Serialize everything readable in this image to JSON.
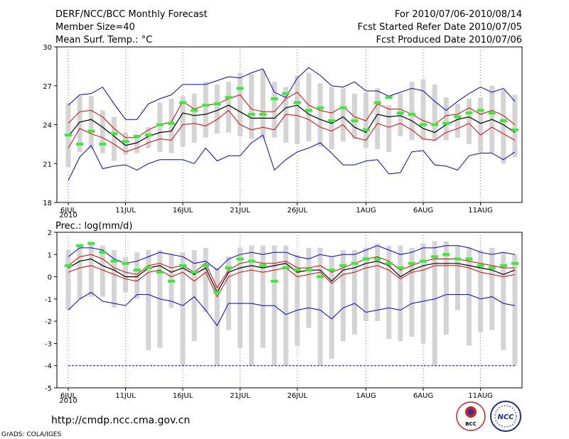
{
  "header": {
    "title": "DERF/NCC/BCC Monthly Forecast",
    "member_size": "Member Size=40",
    "variable": "Mean Surf. Temp.: °C",
    "forecast_range": "For 2010/07/06-2010/08/14",
    "started_date": "Fcst Started Refer Date 2010/07/05",
    "produced_date": "Fcst Produced Date 2010/07/06"
  },
  "footer": {
    "url": "http://cmdp.ncc.cma.gov.cn",
    "grads_credit": "GrADS: COLA/IGES",
    "logo_bcc_text": "BCC",
    "logo_ncc_text": "NCC"
  },
  "colors": {
    "max_line": "#0000dd",
    "min_line": "#0000dd",
    "upper_line": "#dd0000",
    "lower_line": "#dd0000",
    "mean_line": "#000000",
    "box": "#d4d4d4",
    "obs_marker": "#33ee33",
    "dotted_grid": "#888888",
    "dashed_ref": "#0000aa"
  },
  "chart_data": [
    {
      "type": "line",
      "title": "Mean Surf. Temp.: °C",
      "xlabel": "",
      "ylabel": "",
      "ylim": [
        18,
        30
      ],
      "yticks": [
        "18",
        "21",
        "24",
        "27",
        "30"
      ],
      "x_tick_labels": [
        "6JUL",
        "11JUL",
        "16JUL",
        "21JUL",
        "26JUL",
        "1AUG",
        "6AUG",
        "11AUG"
      ],
      "x_tick_days": [
        0,
        5,
        10,
        15,
        20,
        26,
        31,
        36
      ],
      "x_sub_label": "2010",
      "grid": true,
      "days": 40,
      "series": [
        {
          "name": "max",
          "role": "max",
          "values": [
            19.7,
            21.5,
            22.4,
            20.6,
            20.8,
            20.9,
            20.5,
            21.0,
            21.3,
            21.3,
            21.3,
            21.0,
            22.2,
            21.2,
            21.6,
            21.6,
            22.6,
            23.2,
            20.5,
            21.3,
            21.9,
            22.2,
            22.6,
            21.8,
            20.9,
            20.9,
            21.2,
            21.3,
            20.2,
            20.3,
            21.9,
            22.0,
            20.9,
            20.8,
            20.5,
            21.6,
            21.8,
            21.8,
            21.3,
            21.9
          ]
        },
        {
          "name": "box_top",
          "role": "box_top",
          "values": [
            25.7,
            26.2,
            26.2,
            25.1,
            24.6,
            23.4,
            23.2,
            23.8,
            25.7,
            26.0,
            26.2,
            26.4,
            27.3,
            27.1,
            27.3,
            28.0,
            27.9,
            28.2,
            27.3,
            26.9,
            27.8,
            28.0,
            27.2,
            26.9,
            26.8,
            26.4,
            26.5,
            26.8,
            25.5,
            26.4,
            27.3,
            27.5,
            27.1,
            26.1,
            25.6,
            26.0,
            26.1,
            27.0,
            26.7,
            26.3
          ]
        },
        {
          "name": "upper",
          "role": "upper",
          "values": [
            24.1,
            25.0,
            25.1,
            24.6,
            23.7,
            23.0,
            23.0,
            23.6,
            24.0,
            24.2,
            25.8,
            25.2,
            25.5,
            25.6,
            26.0,
            26.3,
            25.2,
            25.0,
            25.0,
            26.0,
            26.5,
            25.5,
            25.1,
            24.9,
            25.4,
            24.6,
            24.3,
            25.6,
            25.2,
            25.2,
            24.8,
            24.3,
            24.0,
            24.7,
            24.8,
            25.3,
            24.8,
            25.1,
            24.7,
            24.0
          ]
        },
        {
          "name": "ensemble_mean",
          "role": "mean",
          "values": [
            23.1,
            24.2,
            24.4,
            23.8,
            23.1,
            22.4,
            22.6,
            23.1,
            23.4,
            23.5,
            24.9,
            24.7,
            24.8,
            25.1,
            25.5,
            25.0,
            24.5,
            24.5,
            24.5,
            25.3,
            25.5,
            24.8,
            24.4,
            24.1,
            24.6,
            23.8,
            23.4,
            24.8,
            24.6,
            24.7,
            24.3,
            23.7,
            23.4,
            24.0,
            24.4,
            24.6,
            24.1,
            24.4,
            24.0,
            23.4
          ]
        },
        {
          "name": "lower",
          "role": "lower",
          "values": [
            22.2,
            23.7,
            23.3,
            23.0,
            22.5,
            21.9,
            22.2,
            22.6,
            22.9,
            22.8,
            24.0,
            24.1,
            23.9,
            24.4,
            25.1,
            24.0,
            23.6,
            23.8,
            23.6,
            24.8,
            24.7,
            24.4,
            23.8,
            23.5,
            24.0,
            23.0,
            22.8,
            24.1,
            23.8,
            24.1,
            23.6,
            22.9,
            22.8,
            23.4,
            23.7,
            24.1,
            23.2,
            23.8,
            23.3,
            22.8
          ]
        },
        {
          "name": "box_bottom",
          "role": "box_bottom",
          "values": [
            20.7,
            21.9,
            22.1,
            21.8,
            21.2,
            21.7,
            21.8,
            22.2,
            21.9,
            21.8,
            22.3,
            22.6,
            23.0,
            23.3,
            23.4,
            23.1,
            22.9,
            22.9,
            23.0,
            22.6,
            22.5,
            22.7,
            22.3,
            22.1,
            22.7,
            22.9,
            22.2,
            22.1,
            21.9,
            23.1,
            22.8,
            22.8,
            22.7,
            22.8,
            23.0,
            22.5,
            21.9,
            21.8,
            21.0,
            21.5
          ]
        },
        {
          "name": "min",
          "role": "min",
          "values": [
            25.5,
            26.3,
            26.4,
            26.9,
            25.6,
            24.4,
            24.4,
            25.6,
            26.0,
            26.3,
            27.1,
            27.1,
            27.1,
            27.4,
            27.7,
            27.6,
            28.0,
            28.3,
            26.5,
            26.1,
            27.6,
            28.4,
            27.8,
            27.0,
            26.9,
            27.3,
            26.6,
            26.6,
            26.2,
            26.5,
            26.8,
            26.6,
            25.8,
            25.1,
            25.8,
            26.4,
            26.9,
            26.5,
            26.8,
            25.8
          ]
        },
        {
          "name": "observed",
          "role": "obs",
          "values": [
            23.2,
            22.5,
            23.5,
            22.5,
            23.3,
            22.7,
            23.1,
            23.2,
            24.0,
            24.1,
            25.7,
            25.1,
            25.5,
            25.6,
            26.1,
            26.8,
            24.8,
            24.8,
            26.0,
            26.4,
            25.7,
            25.1,
            25.3,
            24.3,
            25.3,
            24.3,
            23.6,
            25.7,
            26.1,
            24.9,
            24.8,
            24.0,
            24.0,
            24.1,
            24.6,
            24.9,
            25.1,
            24.9,
            24.3,
            23.6
          ]
        }
      ]
    },
    {
      "type": "line",
      "title": "Prec.: log(mm/d)",
      "xlabel": "",
      "ylabel": "",
      "ylim": [
        -5,
        2
      ],
      "yticks": [
        "-5",
        "-4",
        "-3",
        "-2",
        "-1",
        "0",
        "1",
        "2"
      ],
      "x_tick_labels": [
        "6JUL",
        "11JUL",
        "16JUL",
        "21JUL",
        "26JUL",
        "1AUG",
        "6AUG",
        "11AUG"
      ],
      "x_tick_days": [
        0,
        5,
        10,
        15,
        20,
        26,
        31,
        36
      ],
      "x_sub_label": "2010",
      "grid": true,
      "days": 40,
      "reference_line": -4,
      "series": [
        {
          "name": "max",
          "role": "max",
          "values": [
            0.9,
            1.3,
            1.3,
            1.2,
            0.8,
            0.6,
            0.7,
            0.9,
            1.1,
            1.0,
            0.9,
            0.6,
            0.7,
            0.3,
            0.8,
            1.0,
            1.1,
            1.0,
            1.1,
            1.1,
            0.9,
            0.8,
            1.0,
            0.9,
            1.0,
            1.0,
            1.2,
            1.4,
            1.2,
            1.0,
            1.1,
            1.3,
            1.3,
            1.4,
            1.4,
            1.3,
            1.1,
            1.0,
            1.1,
            1.0
          ]
        },
        {
          "name": "box_top",
          "role": "box_top",
          "values": [
            1.2,
            1.4,
            1.5,
            1.4,
            1.2,
            0.9,
            1.1,
            1.2,
            1.2,
            1.0,
            1.1,
            1.2,
            1.3,
            0.4,
            0.9,
            1.3,
            1.4,
            1.4,
            1.4,
            1.4,
            1.0,
            1.3,
            1.3,
            0.9,
            1.2,
            1.2,
            1.3,
            1.5,
            1.4,
            1.4,
            1.3,
            1.5,
            1.6,
            1.6,
            1.4,
            1.3,
            1.2,
            1.3,
            1.1,
            1.0
          ]
        },
        {
          "name": "upper",
          "role": "upper",
          "values": [
            0.5,
            0.9,
            1.0,
            0.8,
            0.4,
            0.2,
            0.1,
            0.5,
            0.6,
            0.4,
            0.5,
            0.2,
            0.6,
            -0.5,
            0.3,
            0.6,
            0.7,
            0.6,
            0.6,
            0.7,
            0.4,
            0.4,
            0.5,
            0.2,
            0.4,
            0.6,
            0.8,
            0.9,
            0.7,
            0.3,
            0.5,
            0.7,
            0.8,
            0.8,
            0.8,
            0.7,
            0.6,
            0.5,
            0.4,
            0.4
          ]
        },
        {
          "name": "ensemble_mean",
          "role": "mean",
          "values": [
            0.4,
            0.7,
            0.8,
            0.5,
            0.3,
            0.0,
            0.0,
            0.4,
            0.5,
            0.2,
            0.4,
            0.1,
            0.4,
            -0.7,
            0.2,
            0.4,
            0.5,
            0.4,
            0.5,
            0.6,
            0.2,
            0.3,
            0.3,
            -0.2,
            0.3,
            0.4,
            0.6,
            0.7,
            0.5,
            0.0,
            0.3,
            0.5,
            0.6,
            0.6,
            0.6,
            0.5,
            0.4,
            0.3,
            0.1,
            0.3
          ]
        },
        {
          "name": "lower",
          "role": "lower",
          "values": [
            0.2,
            0.4,
            0.5,
            0.3,
            0.1,
            -0.1,
            -0.2,
            0.2,
            0.3,
            0.0,
            0.2,
            -0.2,
            0.2,
            -0.9,
            0.0,
            0.2,
            0.3,
            0.2,
            0.3,
            0.4,
            0.0,
            0.1,
            0.2,
            -0.3,
            0.1,
            0.2,
            0.4,
            0.5,
            0.3,
            -0.1,
            0.2,
            0.3,
            0.5,
            0.5,
            0.5,
            0.4,
            0.2,
            0.1,
            0.0,
            0.1
          ]
        },
        {
          "name": "box_bottom",
          "role": "box_bottom",
          "values": [
            -1.5,
            -1.0,
            -0.9,
            -0.9,
            -1.4,
            -0.7,
            -1.0,
            -3.3,
            -3.2,
            -1.4,
            -4.0,
            -2.9,
            -1.6,
            -4.0,
            -2.4,
            -3.2,
            -4.0,
            -3.2,
            -4.0,
            -4.0,
            -3.1,
            -2.3,
            -4.0,
            -3.7,
            -2.9,
            -2.6,
            -2.0,
            -2.0,
            -2.8,
            -2.9,
            -2.7,
            -3.0,
            -4.0,
            -2.6,
            -1.5,
            -3.1,
            -2.5,
            -2.4,
            -3.3,
            -4.0
          ]
        },
        {
          "name": "min",
          "role": "min",
          "values": [
            -1.5,
            -1.0,
            -0.7,
            -1.1,
            -1.2,
            -1.3,
            -0.8,
            -0.8,
            -1.0,
            -1.1,
            -1.3,
            -0.9,
            -1.5,
            -2.2,
            -1.2,
            -1.2,
            -1.2,
            -1.3,
            -1.3,
            -1.7,
            -1.5,
            -1.4,
            -1.5,
            -1.9,
            -1.4,
            -1.2,
            -1.6,
            -1.5,
            -1.4,
            -1.5,
            -1.2,
            -1.1,
            -1.0,
            -0.8,
            -0.8,
            -0.8,
            -1.0,
            -0.9,
            -1.2,
            -1.3
          ]
        },
        {
          "name": "observed",
          "role": "obs",
          "values": [
            0.5,
            1.4,
            1.5,
            1.1,
            0.7,
            0.6,
            0.3,
            0.4,
            0.2,
            -0.2,
            0.5,
            0.2,
            0.5,
            -0.7,
            0.4,
            0.8,
            0.7,
            0.5,
            -0.2,
            0.4,
            0.3,
            0.3,
            0.0,
            0.3,
            0.5,
            0.6,
            0.8,
            0.8,
            0.6,
            0.4,
            0.6,
            0.7,
            0.9,
            1.0,
            0.8,
            0.8,
            0.5,
            0.4,
            0.5,
            0.6
          ]
        }
      ]
    }
  ]
}
